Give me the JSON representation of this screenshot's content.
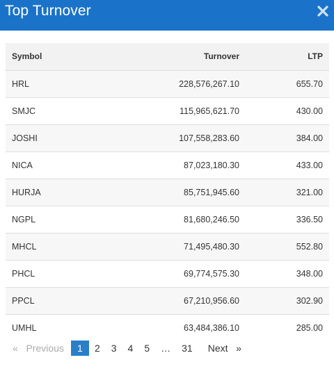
{
  "modal": {
    "title": "Top Turnover",
    "close_icon": "close-icon"
  },
  "table": {
    "headers": {
      "symbol": "Symbol",
      "turnover": "Turnover",
      "ltp": "LTP"
    },
    "rows": [
      {
        "symbol": "HRL",
        "turnover": "228,576,267.10",
        "ltp": "655.70"
      },
      {
        "symbol": "SMJC",
        "turnover": "115,965,621.70",
        "ltp": "430.00"
      },
      {
        "symbol": "JOSHI",
        "turnover": "107,558,283.60",
        "ltp": "384.00"
      },
      {
        "symbol": "NICA",
        "turnover": "87,023,180.30",
        "ltp": "433.00"
      },
      {
        "symbol": "HURJA",
        "turnover": "85,751,945.60",
        "ltp": "321.00"
      },
      {
        "symbol": "NGPL",
        "turnover": "81,680,246.50",
        "ltp": "336.50"
      },
      {
        "symbol": "MHCL",
        "turnover": "71,495,480.30",
        "ltp": "552.80"
      },
      {
        "symbol": "PHCL",
        "turnover": "69,774,575.30",
        "ltp": "348.00"
      },
      {
        "symbol": "PPCL",
        "turnover": "67,210,956.60",
        "ltp": "302.90"
      },
      {
        "symbol": "UMHL",
        "turnover": "63,484,386.10",
        "ltp": "285.00"
      }
    ]
  },
  "pagination": {
    "prev_arrow": "«",
    "prev_label": "Previous",
    "pages": [
      "1",
      "2",
      "3",
      "4",
      "5"
    ],
    "current": "1",
    "ellipsis": "…",
    "last_page": "31",
    "next_label": "Next",
    "next_arrow": "»"
  },
  "colors": {
    "header_bg": "#1a73c9",
    "active_page_bg": "#2b7fc8",
    "row_odd_bg": "#f7f7f7",
    "thead_bg": "#f2f2f2"
  }
}
